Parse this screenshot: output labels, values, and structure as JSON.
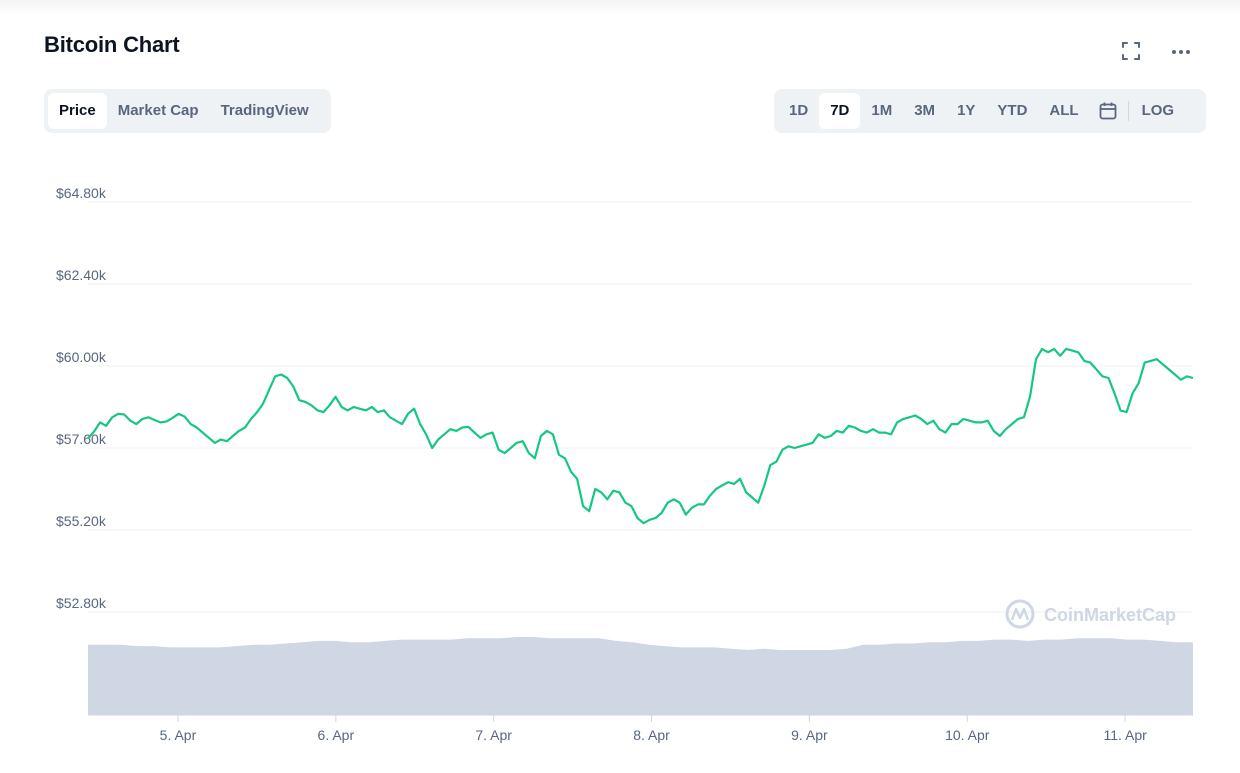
{
  "header": {
    "title": "Bitcoin Chart",
    "fullscreen_icon": "fullscreen-icon",
    "more_icon": "more-horizontal-icon"
  },
  "view_tabs": {
    "items": [
      {
        "label": "Price",
        "active": true
      },
      {
        "label": "Market Cap",
        "active": false
      },
      {
        "label": "TradingView",
        "active": false
      }
    ]
  },
  "range_tabs": {
    "items": [
      {
        "label": "1D",
        "active": false
      },
      {
        "label": "7D",
        "active": true
      },
      {
        "label": "1M",
        "active": false
      },
      {
        "label": "3M",
        "active": false
      },
      {
        "label": "1Y",
        "active": false
      },
      {
        "label": "YTD",
        "active": false
      },
      {
        "label": "ALL",
        "active": false
      }
    ],
    "calendar_icon": "calendar-icon",
    "log_label": "LOG"
  },
  "watermark": {
    "text": "CoinMarketCap",
    "icon": "coinmarketcap-logo-icon"
  },
  "colors": {
    "line": "#16c784",
    "volume": "#cfd6e4",
    "grid": "#eff2f5",
    "axis_text": "#58667e",
    "tab_bg": "#eff2f5",
    "active_tab_bg": "#ffffff"
  },
  "chart_data": {
    "type": "line",
    "series": [
      {
        "values": [
          57880,
          58080,
          58350,
          58250,
          58500,
          58600,
          58580,
          58400,
          58300,
          58450,
          58500,
          58420,
          58350,
          58380,
          58480,
          58600,
          58520,
          58300,
          58200,
          58050,
          57900,
          57750,
          57850,
          57800,
          57950,
          58100,
          58200,
          58450,
          58650,
          58900,
          59300,
          59700,
          59750,
          59650,
          59400,
          59000,
          58950,
          58850,
          58700,
          58650,
          58850,
          59100,
          58800,
          58700,
          58800,
          58750,
          58700,
          58800,
          58650,
          58700,
          58500,
          58400,
          58300,
          58600,
          58750,
          58300,
          58000,
          57600,
          57850,
          58000,
          58150,
          58100,
          58200,
          58220,
          58050,
          57900,
          58000,
          58050,
          57550,
          57450,
          57600,
          57750,
          57800,
          57450,
          57300,
          57950,
          58100,
          58000,
          57400,
          57300,
          56900,
          56700,
          55900,
          55750,
          56400,
          56300,
          56100,
          56350,
          56300,
          56000,
          55900,
          55550,
          55400,
          55500,
          55550,
          55700,
          56000,
          56100,
          56000,
          55650,
          55850,
          55950,
          55950,
          56200,
          56400,
          56500,
          56600,
          56550,
          56700,
          56300,
          56150,
          56000,
          56500,
          57100,
          57200,
          57550,
          57650,
          57600,
          57650,
          57700,
          57750,
          58000,
          57900,
          57950,
          58100,
          58050,
          58250,
          58200,
          58100,
          58050,
          58150,
          58050,
          58050,
          58000,
          58350,
          58450,
          58500,
          58550,
          58450,
          58300,
          58400,
          58150,
          58050,
          58300,
          58300,
          58450,
          58400,
          58350,
          58350,
          58400,
          58100,
          57950,
          58150,
          58300,
          58450,
          58500,
          59100,
          60200,
          60500,
          60400,
          60500,
          60300,
          60500,
          60450,
          60400,
          60150,
          60100,
          59900,
          59700,
          59650,
          59200,
          58700,
          58650,
          59200,
          59500,
          60100,
          60150,
          60200,
          60050,
          59900,
          59750,
          59600,
          59700,
          59650
        ]
      },
      {
        "values": [
          0.54,
          0.54,
          0.54,
          0.53,
          0.53,
          0.52,
          0.52,
          0.52,
          0.52,
          0.53,
          0.54,
          0.54,
          0.55,
          0.56,
          0.57,
          0.57,
          0.56,
          0.56,
          0.57,
          0.58,
          0.58,
          0.58,
          0.58,
          0.59,
          0.59,
          0.59,
          0.6,
          0.6,
          0.59,
          0.59,
          0.59,
          0.59,
          0.57,
          0.56,
          0.54,
          0.53,
          0.52,
          0.52,
          0.52,
          0.51,
          0.5,
          0.51,
          0.5,
          0.5,
          0.5,
          0.5,
          0.51,
          0.54,
          0.54,
          0.55,
          0.55,
          0.56,
          0.56,
          0.57,
          0.57,
          0.58,
          0.58,
          0.57,
          0.58,
          0.58,
          0.59,
          0.59,
          0.59,
          0.58,
          0.58,
          0.57,
          0.56,
          0.56
        ]
      }
    ],
    "y_ticks": [
      "$64.80k",
      "$62.40k",
      "$60.00k",
      "$57.60k",
      "$55.20k",
      "$52.80k"
    ],
    "y_tick_values": [
      64800,
      62400,
      60000,
      57600,
      55200,
      52800
    ],
    "ylim": [
      52800,
      64800
    ],
    "x_ticks": [
      "5. Apr",
      "6. Apr",
      "7. Apr",
      "8. Apr",
      "9. Apr",
      "10. Apr",
      "11. Apr"
    ],
    "x_tick_positions": [
      0.57,
      1.57,
      2.57,
      3.57,
      4.57,
      5.57,
      6.57
    ],
    "x_range": [
      0,
      7
    ],
    "grid": true,
    "legend": "none"
  }
}
